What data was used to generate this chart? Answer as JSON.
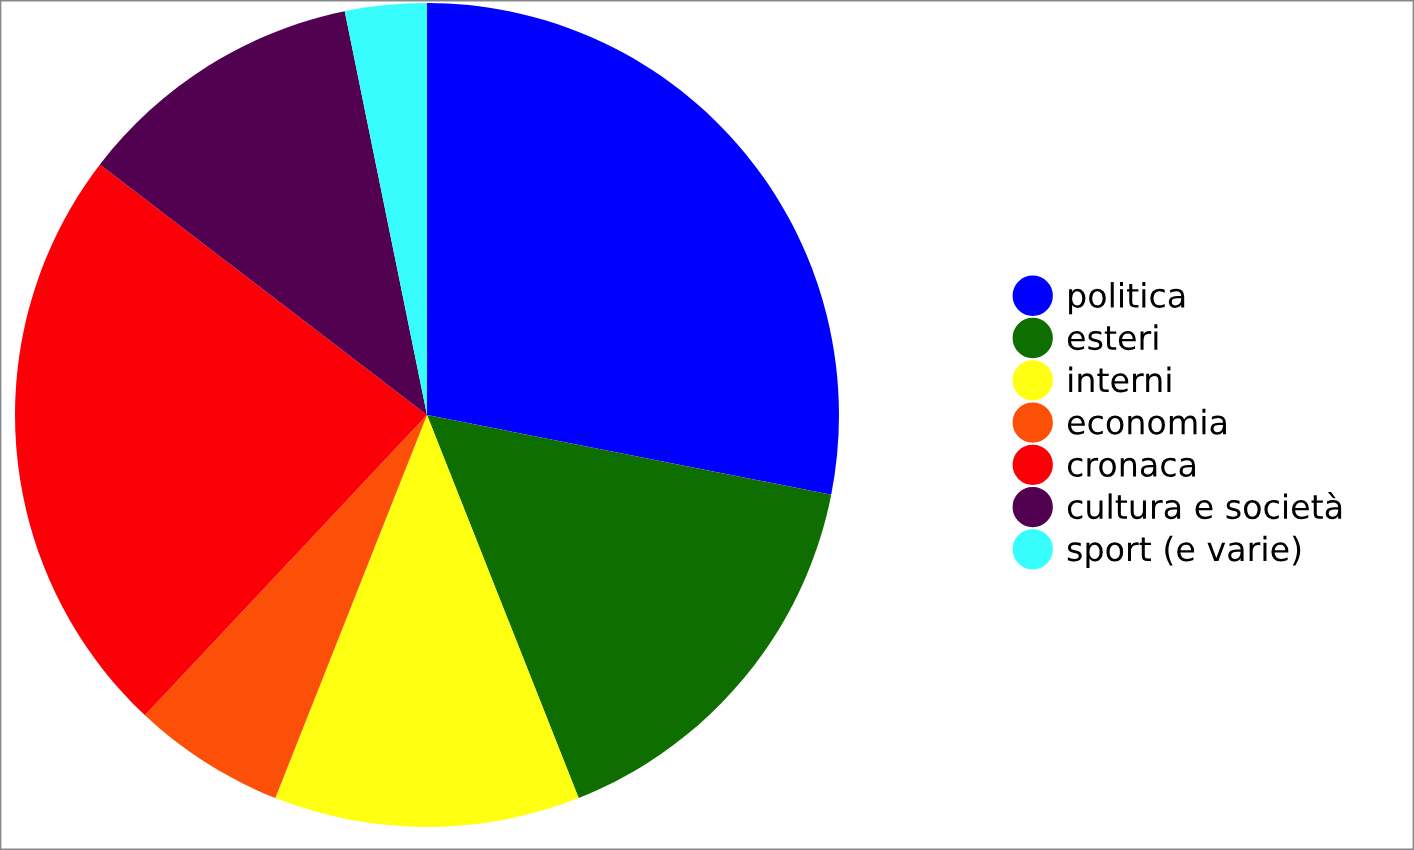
{
  "chart_data": {
    "type": "pie",
    "categories": [
      "politica",
      "esteri",
      "interni",
      "economia",
      "cronaca",
      "cultura e società",
      "sport (e varie)"
    ],
    "values": [
      28.1,
      15.9,
      12.0,
      6.0,
      23.4,
      11.4,
      3.2
    ],
    "colors": [
      "#0000ff",
      "#0e6e00",
      "#ffff11",
      "#fc4f08",
      "#fb0006",
      "#520050",
      "#37fdfd"
    ],
    "legend": "right"
  }
}
